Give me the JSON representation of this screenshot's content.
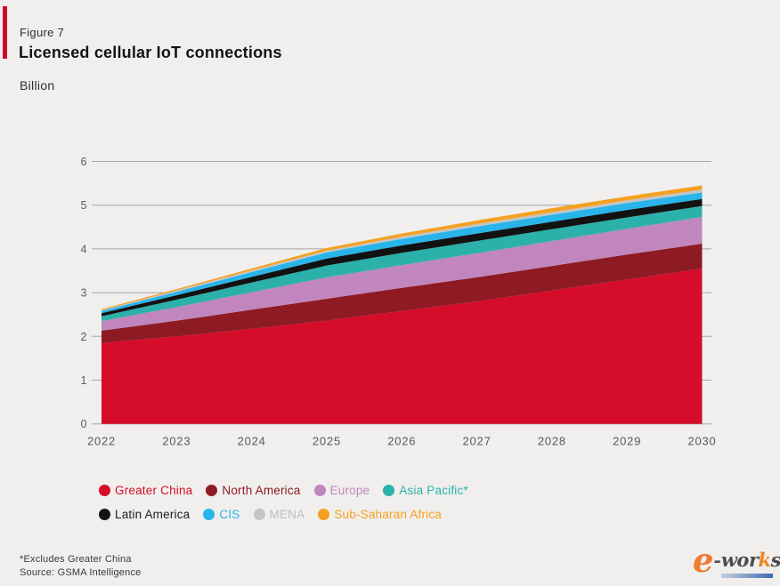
{
  "header": {
    "figure_label": "Figure 7",
    "title": "Licensed cellular IoT connections",
    "unit": "Billion",
    "accent_color": "#CE0928"
  },
  "chart_data": {
    "type": "area",
    "stacked": true,
    "title": "Licensed cellular IoT connections",
    "ylabel": "Billion",
    "ylim": [
      0,
      6
    ],
    "yticks": [
      0,
      1,
      2,
      3,
      4,
      5,
      6
    ],
    "grid": true,
    "years": [
      "2022",
      "2023",
      "2024",
      "2025",
      "2026",
      "2027",
      "2028",
      "2029",
      "2030"
    ],
    "series": [
      {
        "name": "Greater China",
        "color": "#D60C2B",
        "values": [
          1.85,
          2.0,
          2.17,
          2.36,
          2.58,
          2.8,
          3.05,
          3.3,
          3.55
        ]
      },
      {
        "name": "North America",
        "color": "#8E1A23",
        "values": [
          0.28,
          0.36,
          0.44,
          0.5,
          0.53,
          0.55,
          0.56,
          0.57,
          0.57
        ]
      },
      {
        "name": "Europe",
        "color": "#C086BD",
        "values": [
          0.22,
          0.31,
          0.4,
          0.49,
          0.52,
          0.55,
          0.57,
          0.59,
          0.61
        ]
      },
      {
        "name": "Asia Pacific*",
        "color": "#2BB1A9",
        "values": [
          0.11,
          0.17,
          0.22,
          0.27,
          0.28,
          0.28,
          0.27,
          0.26,
          0.25
        ]
      },
      {
        "name": "Latin America",
        "color": "#121212",
        "values": [
          0.07,
          0.1,
          0.13,
          0.16,
          0.17,
          0.17,
          0.17,
          0.17,
          0.16
        ]
      },
      {
        "name": "CIS",
        "color": "#27B5EA",
        "values": [
          0.05,
          0.08,
          0.11,
          0.14,
          0.15,
          0.16,
          0.16,
          0.16,
          0.15
        ]
      },
      {
        "name": "MENA",
        "color": "#C4C4C4",
        "values": [
          0.02,
          0.03,
          0.04,
          0.04,
          0.05,
          0.06,
          0.06,
          0.06,
          0.07
        ]
      },
      {
        "name": "Sub-Saharan Africa",
        "color": "#F5A01E",
        "values": [
          0.02,
          0.03,
          0.04,
          0.06,
          0.07,
          0.08,
          0.09,
          0.09,
          0.09
        ]
      }
    ],
    "totals": [
      2.62,
      3.08,
      3.55,
      4.02,
      4.35,
      4.65,
      4.93,
      5.2,
      5.45
    ],
    "legend_position": "bottom"
  },
  "legend": {
    "rows": [
      [
        {
          "label": "Greater China",
          "color": "#D60C2B",
          "text_color": "#D60C2B"
        },
        {
          "label": "North America",
          "color": "#8E1A23",
          "text_color": "#8E1A23"
        },
        {
          "label": "Europe",
          "color": "#C086BD",
          "text_color": "#C086BD"
        },
        {
          "label": "Asia Pacific*",
          "color": "#2BB1A9",
          "text_color": "#2BB1A9"
        }
      ],
      [
        {
          "label": "Latin America",
          "color": "#141414",
          "text_color": "#1c1c1c"
        },
        {
          "label": "CIS",
          "color": "#27B5EA",
          "text_color": "#27B5EA"
        },
        {
          "label": "MENA",
          "color": "#C4C4C4",
          "text_color": "#BFBFBF"
        },
        {
          "label": "Sub-Saharan Africa",
          "color": "#F5A01E",
          "text_color": "#F5A01E"
        }
      ]
    ]
  },
  "footer": {
    "footnote": "*Excludes Greater China",
    "source": "Source: GSMA Intelligence"
  },
  "logo": {
    "e": "e",
    "dash": "-",
    "wor": "wor",
    "k": "k",
    "s": "s"
  }
}
